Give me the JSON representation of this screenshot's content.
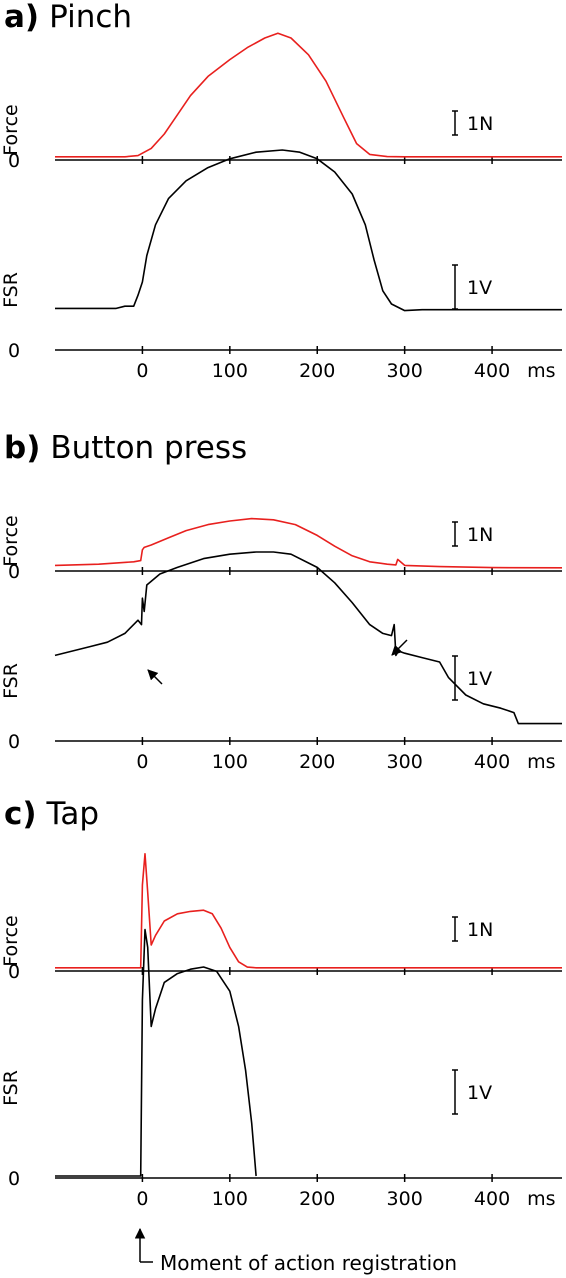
{
  "panels": [
    {
      "letter": "a)",
      "title": "Pinch"
    },
    {
      "letter": "b)",
      "title": "Button press"
    },
    {
      "letter": "c)",
      "title": "Tap"
    }
  ],
  "labels": {
    "force": "Force",
    "fsr": "FSR",
    "zero": "0",
    "scale_force": "1N",
    "scale_fsr": "1V",
    "x_unit": "ms"
  },
  "annotation": {
    "text": "Moment of action registration"
  },
  "colors": {
    "force": "#e8201e",
    "fsr": "#000000"
  },
  "chart_data": [
    {
      "type": "line",
      "title": "Pinch",
      "xlabel": "ms",
      "xlim": [
        -100,
        480
      ],
      "x_ticks": [
        0,
        100,
        200,
        300,
        400
      ],
      "subplots": [
        {
          "ylabel": "Force",
          "unit": "N",
          "series": [
            {
              "color": "#e8201e",
              "x": [
                -100,
                -20,
                -5,
                10,
                25,
                40,
                55,
                75,
                100,
                120,
                140,
                155,
                170,
                190,
                210,
                230,
                245,
                260,
                280,
                300,
                480
              ],
              "y": [
                0.05,
                0.05,
                0.1,
                0.4,
                1.0,
                1.8,
                2.6,
                3.4,
                4.1,
                4.6,
                5.0,
                5.2,
                5.0,
                4.3,
                3.2,
                1.7,
                0.6,
                0.15,
                0.06,
                0.05,
                0.05
              ]
            }
          ]
        },
        {
          "ylabel": "FSR",
          "unit": "V",
          "series": [
            {
              "color": "#000000",
              "x": [
                -100,
                -30,
                -20,
                -10,
                -5,
                0,
                5,
                15,
                30,
                50,
                75,
                100,
                130,
                160,
                180,
                200,
                220,
                240,
                255,
                265,
                275,
                285,
                300,
                320,
                480
              ],
              "y": [
                0.9,
                0.9,
                0.95,
                0.95,
                1.2,
                1.5,
                2.1,
                2.8,
                3.4,
                3.8,
                4.1,
                4.3,
                4.45,
                4.5,
                4.45,
                4.3,
                4.0,
                3.5,
                2.8,
                2.0,
                1.3,
                1.0,
                0.85,
                0.87,
                0.87
              ]
            }
          ]
        }
      ]
    },
    {
      "type": "line",
      "title": "Button press",
      "xlabel": "ms",
      "xlim": [
        -100,
        480
      ],
      "x_ticks": [
        0,
        100,
        200,
        300,
        400
      ],
      "subplots": [
        {
          "ylabel": "Force",
          "unit": "N",
          "series": [
            {
              "color": "#e8201e",
              "x": [
                -100,
                -50,
                -10,
                -2,
                0,
                2,
                10,
                30,
                50,
                75,
                100,
                125,
                150,
                175,
                200,
                220,
                240,
                260,
                280,
                290,
                292,
                300,
                340,
                400,
                480
              ],
              "y": [
                0.15,
                0.2,
                0.3,
                0.35,
                0.8,
                0.9,
                1.0,
                1.3,
                1.6,
                1.85,
                2.0,
                2.1,
                2.05,
                1.85,
                1.4,
                0.95,
                0.55,
                0.3,
                0.2,
                0.17,
                0.4,
                0.15,
                0.1,
                0.06,
                0.05
              ]
            }
          ]
        },
        {
          "ylabel": "FSR",
          "unit": "V",
          "series": [
            {
              "color": "#000000",
              "x": [
                -100,
                -80,
                -60,
                -40,
                -20,
                -5,
                -1,
                0,
                2,
                5,
                20,
                40,
                70,
                100,
                130,
                150,
                170,
                200,
                220,
                240,
                260,
                275,
                285,
                288,
                290,
                293,
                300,
                320,
                340,
                350,
                355,
                370,
                390,
                410,
                425,
                430,
                450,
                480
              ],
              "y": [
                1.9,
                2.0,
                2.1,
                2.2,
                2.4,
                2.7,
                2.6,
                3.2,
                2.9,
                3.5,
                3.75,
                3.9,
                4.1,
                4.2,
                4.25,
                4.25,
                4.2,
                3.9,
                3.55,
                3.1,
                2.6,
                2.4,
                2.35,
                2.6,
                1.9,
                2.0,
                1.95,
                1.85,
                1.75,
                1.4,
                1.3,
                1.0,
                0.8,
                0.7,
                0.6,
                0.35,
                0.35,
                0.35
              ]
            }
          ]
        }
      ]
    },
    {
      "type": "line",
      "title": "Tap",
      "xlabel": "ms",
      "xlim": [
        -100,
        480
      ],
      "x_ticks": [
        0,
        100,
        200,
        300,
        400
      ],
      "subplots": [
        {
          "ylabel": "Force",
          "unit": "N",
          "series": [
            {
              "color": "#e8201e",
              "x": [
                -100,
                -2,
                0,
                3,
                6,
                10,
                15,
                25,
                40,
                55,
                70,
                80,
                90,
                100,
                110,
                120,
                130,
                480
              ],
              "y": [
                0.05,
                0.05,
                3.5,
                4.8,
                3.2,
                1.0,
                1.4,
                2.0,
                2.3,
                2.4,
                2.45,
                2.3,
                1.7,
                0.9,
                0.3,
                0.08,
                0.05,
                0.05
              ]
            }
          ]
        },
        {
          "ylabel": "FSR",
          "unit": "V",
          "series": [
            {
              "color": "#000000",
              "x": [
                -100,
                -2,
                0,
                3,
                6,
                10,
                15,
                25,
                40,
                55,
                70,
                85,
                100,
                110,
                118,
                125,
                130
              ],
              "y": [
                0,
                0,
                4.0,
                5.6,
                5.2,
                3.4,
                3.8,
                4.4,
                4.6,
                4.7,
                4.75,
                4.65,
                4.2,
                3.4,
                2.4,
                1.2,
                0
              ]
            }
          ]
        }
      ]
    }
  ]
}
